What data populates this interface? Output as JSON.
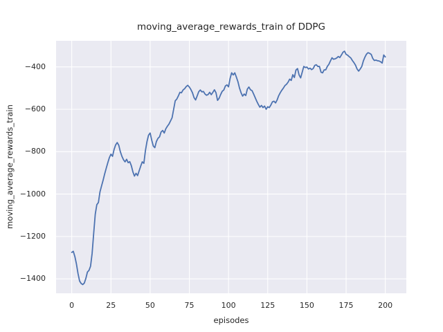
{
  "figure": {
    "title": "moving_average_rewards_train of DDPG",
    "xlabel": "episodes",
    "ylabel": "moving_average_rewards_train"
  },
  "chart_data": {
    "type": "line",
    "title": "moving_average_rewards_train of DDPG",
    "xlabel": "episodes",
    "ylabel": "moving_average_rewards_train",
    "series_name": "moving_average_rewards_train",
    "x_start": 0,
    "x_step": 1,
    "values": [
      -1275,
      -1270,
      -1295,
      -1330,
      -1375,
      -1410,
      -1422,
      -1427,
      -1420,
      -1398,
      -1368,
      -1360,
      -1340,
      -1280,
      -1185,
      -1095,
      -1050,
      -1040,
      -990,
      -962,
      -935,
      -905,
      -878,
      -852,
      -828,
      -812,
      -822,
      -790,
      -768,
      -757,
      -770,
      -800,
      -822,
      -838,
      -848,
      -836,
      -852,
      -847,
      -866,
      -895,
      -915,
      -902,
      -913,
      -890,
      -868,
      -848,
      -855,
      -795,
      -752,
      -722,
      -712,
      -745,
      -773,
      -781,
      -752,
      -737,
      -730,
      -707,
      -700,
      -712,
      -692,
      -680,
      -670,
      -655,
      -640,
      -600,
      -560,
      -552,
      -537,
      -520,
      -522,
      -509,
      -503,
      -493,
      -487,
      -495,
      -507,
      -522,
      -545,
      -556,
      -537,
      -517,
      -509,
      -518,
      -516,
      -528,
      -534,
      -530,
      -520,
      -531,
      -520,
      -508,
      -522,
      -558,
      -548,
      -530,
      -515,
      -509,
      -490,
      -485,
      -494,
      -455,
      -428,
      -438,
      -428,
      -448,
      -470,
      -500,
      -522,
      -538,
      -528,
      -535,
      -505,
      -495,
      -508,
      -512,
      -528,
      -545,
      -562,
      -577,
      -590,
      -582,
      -592,
      -585,
      -600,
      -588,
      -592,
      -580,
      -565,
      -562,
      -570,
      -556,
      -536,
      -522,
      -510,
      -500,
      -488,
      -482,
      -472,
      -458,
      -464,
      -437,
      -450,
      -415,
      -408,
      -438,
      -452,
      -425,
      -398,
      -403,
      -401,
      -410,
      -406,
      -413,
      -408,
      -393,
      -390,
      -398,
      -398,
      -425,
      -428,
      -414,
      -414,
      -398,
      -388,
      -372,
      -357,
      -364,
      -362,
      -358,
      -351,
      -356,
      -344,
      -331,
      -326,
      -341,
      -345,
      -352,
      -358,
      -370,
      -380,
      -392,
      -410,
      -420,
      -410,
      -398,
      -372,
      -354,
      -340,
      -333,
      -336,
      -341,
      -360,
      -370,
      -368,
      -371,
      -372,
      -376,
      -382,
      -344,
      -353
    ],
    "xlim": [
      -10,
      213.4
    ],
    "ylim": [
      -1468,
      -277
    ],
    "x_ticks": [
      0,
      25,
      50,
      75,
      100,
      125,
      150,
      175,
      200
    ],
    "y_ticks": [
      -400,
      -600,
      -800,
      -1000,
      -1200,
      -1400
    ],
    "grid": true,
    "legend_position": "none",
    "style": {
      "line_color": "#4C72B0",
      "line_width": 1.8,
      "axes_bg": "#EAEAF2",
      "grid_color": "#FFFFFF",
      "text_color": "#262626",
      "fig_bg": "#FFFFFF"
    }
  }
}
